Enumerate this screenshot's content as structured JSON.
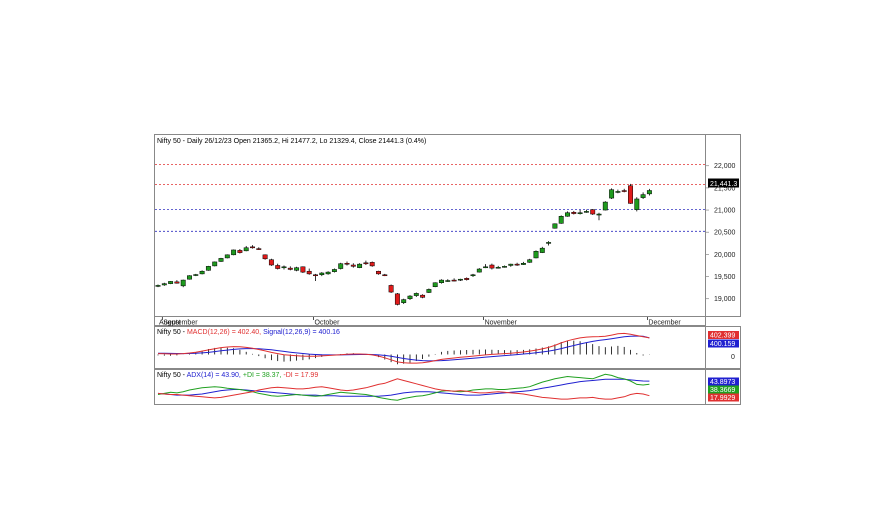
{
  "chart_data": {
    "type": "candlestick",
    "title": "Nifty 50 - Daily 26/12/23 Open 21365.2, Hi 21477.2, Lo 21329.4, Close 21441.3 (0.4%)",
    "price_axis": {
      "ticks": [
        "22,000",
        "21,500",
        "21,000",
        "20,500",
        "20,000",
        "19,500",
        "19,000"
      ],
      "tick_values": [
        22000,
        21500,
        21000,
        20500,
        20000,
        19500,
        19000
      ],
      "range": [
        18700,
        22400
      ],
      "last_price_label": "21,441.3",
      "last_price": 21441.3
    },
    "month_labels": [
      "August",
      "September",
      "October",
      "November",
      "December"
    ],
    "month_positions": [
      -1,
      1,
      25,
      52,
      78
    ],
    "horizontal_levels": [
      {
        "value": 22030,
        "color": "#e03030"
      },
      {
        "value": 21580,
        "color": "#e03030"
      },
      {
        "value": 21010,
        "color": "#3030c0"
      },
      {
        "value": 20520,
        "color": "#3030c0"
      }
    ],
    "candles": [
      {
        "o": 19290,
        "h": 19320,
        "l": 19260,
        "c": 19300
      },
      {
        "o": 19310,
        "h": 19360,
        "l": 19290,
        "c": 19340
      },
      {
        "o": 19340,
        "h": 19400,
        "l": 19330,
        "c": 19390
      },
      {
        "o": 19380,
        "h": 19420,
        "l": 19340,
        "c": 19350
      },
      {
        "o": 19290,
        "h": 19430,
        "l": 19260,
        "c": 19420
      },
      {
        "o": 19440,
        "h": 19530,
        "l": 19430,
        "c": 19520
      },
      {
        "o": 19530,
        "h": 19560,
        "l": 19510,
        "c": 19545
      },
      {
        "o": 19560,
        "h": 19640,
        "l": 19550,
        "c": 19620
      },
      {
        "o": 19640,
        "h": 19740,
        "l": 19630,
        "c": 19730
      },
      {
        "o": 19740,
        "h": 19840,
        "l": 19730,
        "c": 19830
      },
      {
        "o": 19840,
        "h": 19920,
        "l": 19830,
        "c": 19910
      },
      {
        "o": 19920,
        "h": 20000,
        "l": 19910,
        "c": 19990
      },
      {
        "o": 19990,
        "h": 20110,
        "l": 19980,
        "c": 20100
      },
      {
        "o": 20090,
        "h": 20120,
        "l": 20020,
        "c": 20040
      },
      {
        "o": 20080,
        "h": 20190,
        "l": 20070,
        "c": 20150
      },
      {
        "o": 20170,
        "h": 20210,
        "l": 20130,
        "c": 20150
      },
      {
        "o": 20130,
        "h": 20160,
        "l": 20100,
        "c": 20120
      },
      {
        "o": 19990,
        "h": 20000,
        "l": 19880,
        "c": 19900
      },
      {
        "o": 19880,
        "h": 19900,
        "l": 19740,
        "c": 19760
      },
      {
        "o": 19750,
        "h": 19790,
        "l": 19660,
        "c": 19680
      },
      {
        "o": 19700,
        "h": 19750,
        "l": 19660,
        "c": 19720
      },
      {
        "o": 19690,
        "h": 19730,
        "l": 19640,
        "c": 19660
      },
      {
        "o": 19640,
        "h": 19720,
        "l": 19620,
        "c": 19700
      },
      {
        "o": 19720,
        "h": 19730,
        "l": 19580,
        "c": 19600
      },
      {
        "o": 19620,
        "h": 19680,
        "l": 19540,
        "c": 19560
      },
      {
        "o": 19540,
        "h": 19560,
        "l": 19400,
        "c": 19520
      },
      {
        "o": 19540,
        "h": 19600,
        "l": 19510,
        "c": 19580
      },
      {
        "o": 19560,
        "h": 19620,
        "l": 19540,
        "c": 19600
      },
      {
        "o": 19610,
        "h": 19680,
        "l": 19590,
        "c": 19660
      },
      {
        "o": 19680,
        "h": 19810,
        "l": 19660,
        "c": 19790
      },
      {
        "o": 19800,
        "h": 19840,
        "l": 19750,
        "c": 19780
      },
      {
        "o": 19760,
        "h": 19800,
        "l": 19700,
        "c": 19730
      },
      {
        "o": 19700,
        "h": 19800,
        "l": 19690,
        "c": 19780
      },
      {
        "o": 19810,
        "h": 19860,
        "l": 19760,
        "c": 19800
      },
      {
        "o": 19820,
        "h": 19840,
        "l": 19720,
        "c": 19740
      },
      {
        "o": 19620,
        "h": 19630,
        "l": 19540,
        "c": 19560
      },
      {
        "o": 19540,
        "h": 19560,
        "l": 19510,
        "c": 19530
      },
      {
        "o": 19300,
        "h": 19320,
        "l": 19130,
        "c": 19150
      },
      {
        "o": 19110,
        "h": 19130,
        "l": 18850,
        "c": 18870
      },
      {
        "o": 18910,
        "h": 19000,
        "l": 18880,
        "c": 18980
      },
      {
        "o": 19000,
        "h": 19080,
        "l": 18970,
        "c": 19060
      },
      {
        "o": 19070,
        "h": 19140,
        "l": 19040,
        "c": 19120
      },
      {
        "o": 19080,
        "h": 19100,
        "l": 19010,
        "c": 19030
      },
      {
        "o": 19140,
        "h": 19230,
        "l": 19130,
        "c": 19210
      },
      {
        "o": 19270,
        "h": 19370,
        "l": 19260,
        "c": 19360
      },
      {
        "o": 19360,
        "h": 19440,
        "l": 19340,
        "c": 19420
      },
      {
        "o": 19400,
        "h": 19440,
        "l": 19380,
        "c": 19410
      },
      {
        "o": 19420,
        "h": 19460,
        "l": 19390,
        "c": 19400
      },
      {
        "o": 19420,
        "h": 19450,
        "l": 19400,
        "c": 19440
      },
      {
        "o": 19460,
        "h": 19480,
        "l": 19410,
        "c": 19430
      },
      {
        "o": 19520,
        "h": 19560,
        "l": 19490,
        "c": 19540
      },
      {
        "o": 19600,
        "h": 19690,
        "l": 19590,
        "c": 19670
      },
      {
        "o": 19700,
        "h": 19780,
        "l": 19690,
        "c": 19720
      },
      {
        "o": 19760,
        "h": 19790,
        "l": 19660,
        "c": 19690
      },
      {
        "o": 19700,
        "h": 19740,
        "l": 19680,
        "c": 19710
      },
      {
        "o": 19720,
        "h": 19750,
        "l": 19700,
        "c": 19730
      },
      {
        "o": 19750,
        "h": 19790,
        "l": 19720,
        "c": 19780
      },
      {
        "o": 19780,
        "h": 19810,
        "l": 19740,
        "c": 19760
      },
      {
        "o": 19770,
        "h": 19830,
        "l": 19760,
        "c": 19800
      },
      {
        "o": 19820,
        "h": 19900,
        "l": 19810,
        "c": 19880
      },
      {
        "o": 19920,
        "h": 20090,
        "l": 19910,
        "c": 20070
      },
      {
        "o": 20040,
        "h": 20170,
        "l": 20030,
        "c": 20140
      },
      {
        "o": 20260,
        "h": 20300,
        "l": 20200,
        "c": 20270
      },
      {
        "o": 20590,
        "h": 20700,
        "l": 20580,
        "c": 20690
      },
      {
        "o": 20700,
        "h": 20880,
        "l": 20690,
        "c": 20860
      },
      {
        "o": 20860,
        "h": 20970,
        "l": 20850,
        "c": 20940
      },
      {
        "o": 20950,
        "h": 20980,
        "l": 20900,
        "c": 20920
      },
      {
        "o": 20930,
        "h": 21000,
        "l": 20900,
        "c": 20940
      },
      {
        "o": 20960,
        "h": 21010,
        "l": 20940,
        "c": 20970
      },
      {
        "o": 21010,
        "h": 21020,
        "l": 20890,
        "c": 20910
      },
      {
        "o": 20900,
        "h": 20940,
        "l": 20770,
        "c": 20910
      },
      {
        "o": 21000,
        "h": 21200,
        "l": 20990,
        "c": 21180
      },
      {
        "o": 21270,
        "h": 21490,
        "l": 21250,
        "c": 21460
      },
      {
        "o": 21420,
        "h": 21460,
        "l": 21380,
        "c": 21420
      },
      {
        "o": 21440,
        "h": 21480,
        "l": 21400,
        "c": 21430
      },
      {
        "o": 21550,
        "h": 21590,
        "l": 21140,
        "c": 21150
      },
      {
        "o": 21010,
        "h": 21290,
        "l": 20970,
        "c": 21250
      },
      {
        "o": 21280,
        "h": 21400,
        "l": 21250,
        "c": 21349
      },
      {
        "o": 21365.2,
        "h": 21477.2,
        "l": 21329.4,
        "c": 21441.3
      }
    ],
    "macd": {
      "label_prefix": "Nifty 50 - ",
      "macd_label": "MACD(12,26) = 402.40,",
      "signal_label": "Signal(12,26,9) = 400.16",
      "badge_macd": "402.399",
      "badge_signal": "400.159",
      "zero_label": "0",
      "range": [
        -280,
        520
      ],
      "macd_values": [
        20,
        15,
        10,
        12,
        20,
        35,
        55,
        80,
        110,
        140,
        165,
        180,
        190,
        185,
        170,
        150,
        120,
        85,
        50,
        20,
        -5,
        -20,
        -30,
        -40,
        -45,
        -42,
        -35,
        -25,
        -15,
        -5,
        5,
        10,
        10,
        5,
        -10,
        -40,
        -80,
        -130,
        -180,
        -200,
        -210,
        -210,
        -200,
        -180,
        -150,
        -120,
        -100,
        -85,
        -70,
        -55,
        -40,
        -25,
        -10,
        0,
        10,
        20,
        30,
        45,
        60,
        80,
        105,
        135,
        170,
        220,
        280,
        330,
        370,
        400,
        420,
        430,
        432,
        440,
        470,
        500,
        510,
        490,
        460,
        430,
        402.4
      ],
      "signal_values": [
        30,
        28,
        25,
        22,
        21,
        23,
        28,
        38,
        50,
        68,
        88,
        106,
        122,
        134,
        141,
        143,
        138,
        127,
        112,
        93,
        74,
        55,
        38,
        22,
        9,
        -1,
        -8,
        -11,
        -12,
        -10,
        -7,
        -4,
        -1,
        0,
        -2,
        -10,
        -24,
        -45,
        -72,
        -98,
        -120,
        -138,
        -150,
        -156,
        -155,
        -148,
        -139,
        -128,
        -116,
        -104,
        -91,
        -78,
        -65,
        -52,
        -39,
        -27,
        -15,
        -3,
        10,
        24,
        40,
        59,
        81,
        109,
        143,
        180,
        218,
        254,
        287,
        316,
        340,
        360,
        382,
        406,
        427,
        440,
        444,
        441,
        400.16
      ],
      "colors": {
        "macd": "#e03030",
        "signal": "#2020d0",
        "hist": "#000000"
      }
    },
    "adx": {
      "label_prefix": "Nifty 50 - ",
      "adx_label": "ADX(14) = 43.90,",
      "pdi_label": "+DI = 38.37,",
      "mdi_label": "-DI = 17.99",
      "badge_adx": "43.8973",
      "badge_pdi": "38.3669",
      "badge_mdi": "17.9929",
      "range": [
        5,
        60
      ],
      "adx_values": [
        22,
        21,
        20,
        19,
        19,
        19,
        20,
        21,
        23,
        25,
        27,
        28,
        29,
        29,
        28,
        27,
        26,
        25,
        24,
        23,
        22,
        21,
        20,
        19,
        19,
        19,
        18,
        18,
        18,
        17,
        17,
        17,
        17,
        17,
        17,
        17,
        18,
        19,
        21,
        23,
        24,
        25,
        25,
        25,
        24,
        23,
        22,
        21,
        20,
        19,
        19,
        19,
        20,
        21,
        22,
        23,
        24,
        25,
        26,
        27,
        29,
        31,
        33,
        35,
        37,
        39,
        41,
        43,
        44,
        45,
        46,
        47,
        47,
        47,
        47,
        46,
        45,
        44,
        43.9
      ],
      "pdi_values": [
        20,
        22,
        24,
        23,
        25,
        28,
        30,
        32,
        33,
        34,
        33,
        31,
        30,
        29,
        27,
        25,
        22,
        20,
        18,
        17,
        18,
        19,
        20,
        19,
        18,
        17,
        18,
        20,
        22,
        24,
        23,
        22,
        21,
        20,
        18,
        15,
        13,
        11,
        10,
        13,
        15,
        17,
        18,
        20,
        23,
        26,
        27,
        26,
        25,
        26,
        28,
        29,
        30,
        30,
        29,
        29,
        30,
        31,
        32,
        34,
        38,
        42,
        45,
        48,
        50,
        52,
        51,
        50,
        49,
        48,
        52,
        56,
        54,
        50,
        48,
        44,
        38,
        37,
        38.37
      ],
      "mdi_values": [
        22,
        21,
        20,
        20,
        19,
        18,
        17,
        16,
        15,
        14,
        15,
        17,
        19,
        21,
        23,
        25,
        28,
        30,
        32,
        33,
        32,
        31,
        30,
        30,
        31,
        33,
        34,
        32,
        30,
        28,
        27,
        28,
        30,
        32,
        35,
        38,
        40,
        44,
        48,
        45,
        42,
        39,
        36,
        33,
        30,
        28,
        27,
        26,
        27,
        26,
        24,
        23,
        23,
        24,
        25,
        24,
        23,
        22,
        21,
        19,
        17,
        15,
        14,
        13,
        12,
        12,
        13,
        14,
        14,
        15,
        13,
        12,
        12,
        14,
        16,
        20,
        22,
        21,
        17.99
      ],
      "colors": {
        "adx": "#2020d0",
        "pdi": "#20a020",
        "mdi": "#e03030"
      }
    }
  }
}
